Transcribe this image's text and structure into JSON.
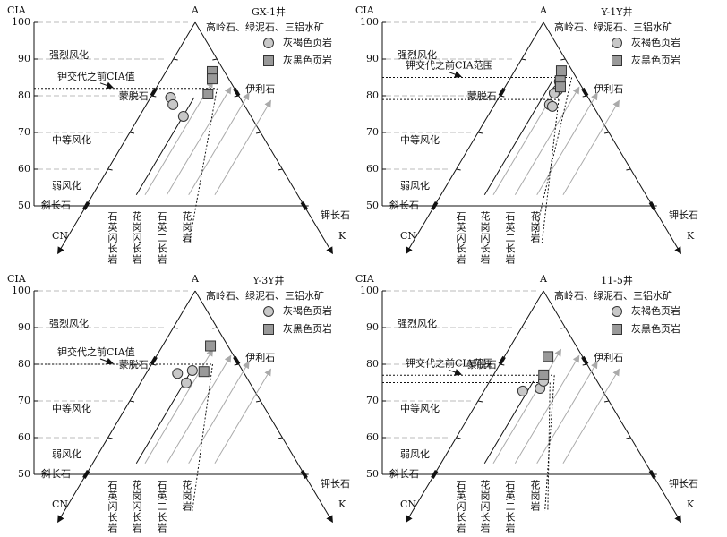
{
  "chart_data": [
    {
      "type": "ternary",
      "title": "GX-1井",
      "axis_label": "CIA",
      "apex_label": "A",
      "left_label": "CN",
      "right_label": "K",
      "apex_minerals": "高岭石、绿泥石、三铝水矿",
      "ylim": [
        50,
        100
      ],
      "yticks": [
        50,
        60,
        70,
        80,
        90,
        100
      ],
      "zones": [
        "强烈风化",
        "中等风化",
        "弱风化"
      ],
      "minerals": [
        "蒙脱石",
        "伊利石",
        "斜长石",
        "钾长石"
      ],
      "rocks": [
        "石英闪长岩",
        "花岗闪长岩",
        "石英二长岩",
        "花岗岩"
      ],
      "ref_label": "钾交代之前CIA值",
      "ref_cia": [
        82
      ],
      "series": [
        {
          "name": "灰褐色页岩",
          "marker": "circle",
          "color": "#c8c8c8",
          "values": [
            79.5,
            77.6,
            74.4
          ],
          "k": [
            4.6,
            6.1,
            10.1
          ]
        },
        {
          "name": "灰黑色页岩",
          "marker": "square",
          "color": "#999999",
          "values": [
            86.6,
            84.6,
            80.5
          ],
          "k": [
            10.6,
            11.6,
            12.7
          ]
        }
      ]
    },
    {
      "type": "ternary",
      "title": "Y-1Y井",
      "axis_label": "CIA",
      "apex_label": "A",
      "left_label": "CN",
      "right_label": "K",
      "apex_minerals": "高岭石、绿泥石、三铝水矿",
      "ylim": [
        50,
        100
      ],
      "yticks": [
        50,
        60,
        70,
        80,
        90,
        100
      ],
      "zones": [
        "强烈风化",
        "中等风化",
        "弱风化"
      ],
      "minerals": [
        "蒙脱石",
        "伊利石",
        "斜长石",
        "钾长石"
      ],
      "rocks": [
        "石英闪长岩",
        "花岗闪长岩",
        "石英二长岩",
        "花岗岩"
      ],
      "ref_label": "钾交代之前CIA范围",
      "ref_cia": [
        79,
        85
      ],
      "series": [
        {
          "name": "灰褐色页岩",
          "marker": "circle",
          "color": "#c8c8c8",
          "values": [
            83.9,
            81.5,
            80.7,
            77.6,
            77.1
          ],
          "k": [
            11.7,
            12.5,
            12.1,
            12.6,
            13.5
          ]
        },
        {
          "name": "灰黑色页岩",
          "marker": "square",
          "color": "#999999",
          "values": [
            86.8,
            84.1,
            82.4
          ],
          "k": [
            10.7,
            11.8,
            12.7
          ]
        }
      ]
    },
    {
      "type": "ternary",
      "title": "Y-3Y井",
      "axis_label": "CIA",
      "apex_label": "A",
      "left_label": "CN",
      "right_label": "K",
      "apex_minerals": "高岭石、绿泥石、三铝水矿",
      "ylim": [
        50,
        100
      ],
      "yticks": [
        50,
        60,
        70,
        80,
        90,
        100
      ],
      "zones": [
        "强烈风化",
        "中等风化",
        "弱风化"
      ],
      "minerals": [
        "蒙脱石",
        "伊利石",
        "斜长石",
        "钾长石"
      ],
      "rocks": [
        "石英闪长岩",
        "花岗闪长岩",
        "石英二长岩",
        "花岗岩"
      ],
      "ref_label": "钾交代之前CIA值",
      "ref_cia": [
        80
      ],
      "series": [
        {
          "name": "灰褐色页岩",
          "marker": "circle",
          "color": "#c8c8c8",
          "values": [
            77.5,
            74.9,
            78.3
          ],
          "k": [
            7.2,
            10.5,
            10.2
          ]
        },
        {
          "name": "灰黑色页岩",
          "marker": "square",
          "color": "#999999",
          "values": [
            85.0,
            78.0
          ],
          "k": [
            11.0,
            13.0
          ]
        }
      ]
    },
    {
      "type": "ternary",
      "title": "11-5井",
      "axis_label": "CIA",
      "apex_label": "A",
      "left_label": "CN",
      "right_label": "K",
      "apex_minerals": "高岭石、绿泥石、三铝水矿",
      "ylim": [
        50,
        100
      ],
      "yticks": [
        50,
        60,
        70,
        80,
        90,
        100
      ],
      "zones": [
        "强烈风化",
        "中等风化",
        "弱风化"
      ],
      "minerals": [
        "蒙脱石",
        "伊利石",
        "斜长石",
        "钾长石"
      ],
      "rocks": [
        "石英闪长岩",
        "花岗闪长岩",
        "石英二长岩",
        "花岗岩"
      ],
      "ref_label": "钾交代之前CIA范围",
      "ref_cia": [
        75,
        77
      ],
      "series": [
        {
          "name": "灰褐色页岩",
          "marker": "circle",
          "color": "#c8c8c8",
          "values": [
            72.7,
            73.4,
            75.4
          ],
          "k": [
            8.9,
            12.5,
            12.3
          ]
        },
        {
          "name": "灰黑色页岩",
          "marker": "square",
          "color": "#999999",
          "values": [
            82.1,
            77.1
          ],
          "k": [
            10.0,
            11.5
          ]
        }
      ]
    }
  ]
}
